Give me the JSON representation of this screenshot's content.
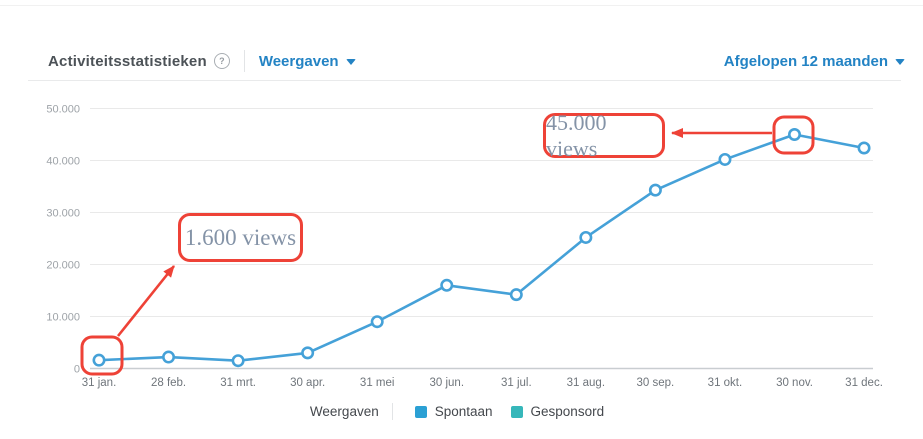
{
  "header": {
    "title": "Activiteitsstatistieken",
    "help_glyph": "?",
    "metric_dropdown": {
      "label": "Weergaven"
    },
    "range_dropdown": {
      "label": "Afgelopen 12 maanden"
    }
  },
  "chart_data": {
    "type": "line",
    "title": "Weergaven",
    "categories": [
      "31 jan.",
      "28 feb.",
      "31 mrt.",
      "30 apr.",
      "31 mei",
      "30 jun.",
      "31 jul.",
      "31 aug.",
      "30 sep.",
      "31 okt.",
      "30 nov.",
      "31 dec."
    ],
    "series": [
      {
        "name": "Spontaan",
        "color": "#45a1d8",
        "values": [
          1600,
          2200,
          1500,
          3000,
          9000,
          16000,
          14200,
          25200,
          34300,
          40200,
          45000,
          42400
        ]
      },
      {
        "name": "Gesponsord",
        "color": "#36b7ba",
        "values": []
      }
    ],
    "ylim": [
      0,
      50000
    ],
    "ytick_labels": [
      "0",
      "10.000",
      "20.000",
      "30.000",
      "40.000",
      "50.000"
    ],
    "grid": true,
    "legend_position": "bottom"
  },
  "legend": {
    "title": "Weergaven",
    "items": [
      {
        "label": "Spontaan",
        "color": "#2ba0d4"
      },
      {
        "label": "Gesponsord",
        "color": "#36b7ba"
      }
    ]
  },
  "annotations": [
    {
      "text": "1.600 views",
      "points_to": "31 jan."
    },
    {
      "text": "45.000 views",
      "points_to": "30 nov."
    }
  ],
  "colors": {
    "accent_blue": "#2383c4",
    "line_blue": "#45a1d8",
    "teal": "#36b7ba",
    "annotation_red": "#ee4237",
    "annotation_text": "#8493a7",
    "gridline": "#e9e9e9",
    "axis_line": "#c9cdd1"
  }
}
